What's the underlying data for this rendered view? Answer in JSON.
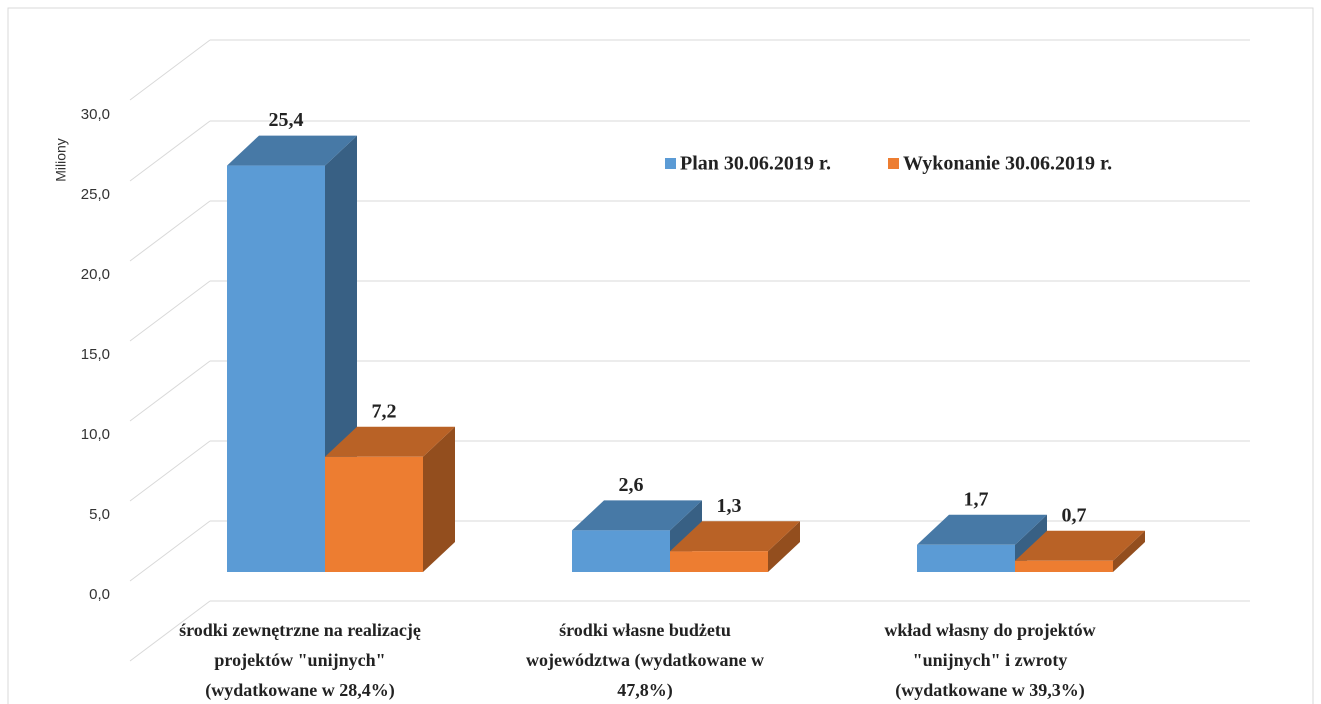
{
  "chart_data": {
    "type": "bar3d",
    "y_axis_label": "Miliony",
    "categories": [
      [
        "środki zewnętrzne na realizację",
        "projektów \"unijnych\"",
        "(wydatkowane w 28,4%)"
      ],
      [
        "środki własne budżetu",
        "województwa (wydatkowane w",
        "47,8%)"
      ],
      [
        "wkład własny do projektów",
        "\"unijnych\"  i zwroty",
        "(wydatkowane w 39,3%)"
      ]
    ],
    "series": [
      {
        "name": "Plan 30.06.2019 r.",
        "color": "#5b9bd5",
        "values": [
          25.4,
          2.6,
          1.7
        ],
        "value_labels": [
          "25,4",
          "2,6",
          "1,7"
        ]
      },
      {
        "name": "Wykonanie 30.06.2019 r.",
        "color": "#ed7d31",
        "values": [
          7.2,
          1.3,
          0.7
        ],
        "value_labels": [
          "7,2",
          "1,3",
          "0,7"
        ]
      }
    ],
    "ylim": [
      0,
      35
    ],
    "yticks": [
      {
        "value": 0,
        "label": "0,0"
      },
      {
        "value": 5,
        "label": "5,0"
      },
      {
        "value": 10,
        "label": "10,0"
      },
      {
        "value": 15,
        "label": "15,0"
      },
      {
        "value": 20,
        "label": "20,0"
      },
      {
        "value": 25,
        "label": "25,0"
      },
      {
        "value": 30,
        "label": "30,0"
      }
    ],
    "grid": true
  }
}
